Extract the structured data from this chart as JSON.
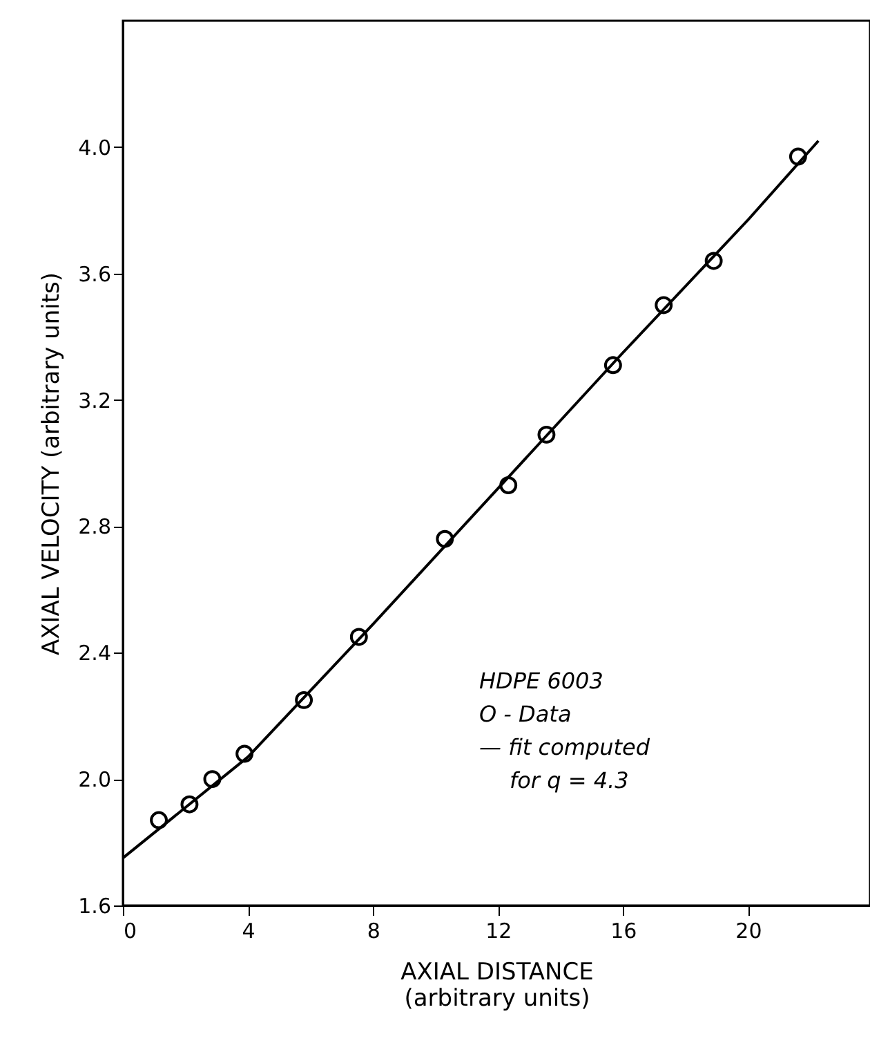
{
  "chart_data": {
    "type": "scatter",
    "xlabel": "AXIAL DISTANCE\n(arbitrary units)",
    "ylabel": "AXIAL VELOCITY (arbitrary units)",
    "xlim": [
      0,
      23.9
    ],
    "ylim": [
      1.6,
      4.4
    ],
    "xticks": [
      0,
      4,
      8,
      12,
      16,
      20
    ],
    "yticks": [
      {
        "value": 1.6,
        "label": "1.6"
      },
      {
        "value": 2.0,
        "label": "2.0"
      },
      {
        "value": 2.4,
        "label": "2.4"
      },
      {
        "value": 2.8,
        "label": "2.8"
      },
      {
        "value": 3.2,
        "label": "3.2"
      },
      {
        "value": 3.6,
        "label": "3.6"
      },
      {
        "value": 4.0,
        "label": "4.0"
      }
    ],
    "grid": false,
    "series": [
      {
        "marker": "circle",
        "color": "#000000",
        "x": [
          1.15,
          2.13,
          2.86,
          3.89,
          5.79,
          7.55,
          10.3,
          12.33,
          13.55,
          15.68,
          17.3,
          18.9,
          21.6
        ],
        "values": [
          1.87,
          1.92,
          2.0,
          2.08,
          2.25,
          2.45,
          2.76,
          2.93,
          3.09,
          3.31,
          3.5,
          3.64,
          3.97
        ]
      },
      {
        "type": "line",
        "line_style": "solid",
        "color": "#000000",
        "x": [
          0,
          4,
          8,
          12,
          16,
          20,
          22.25
        ],
        "values": [
          1.75,
          2.07,
          2.49,
          2.92,
          3.35,
          3.77,
          4.02
        ]
      }
    ],
    "annotations": [
      "HDPE 6003",
      "O - Data",
      "— fit computed",
      "for q = 4.3"
    ]
  }
}
